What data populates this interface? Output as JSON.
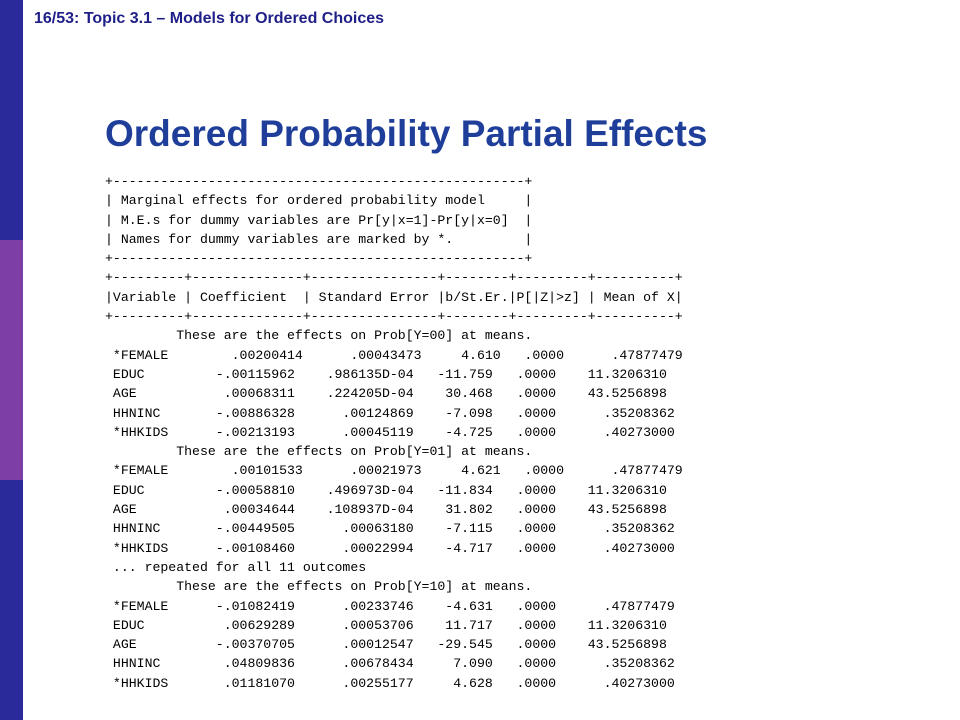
{
  "slide": {
    "header": "16/53: Topic 3.1 – Models for Ordered Choices",
    "title": "Ordered Probability Partial Effects"
  },
  "output": {
    "box_lines": [
      "+----------------------------------------------------+",
      "| Marginal effects for ordered probability model     |",
      "| M.E.s for dummy variables are Pr[y|x=1]-Pr[y|x=0]  |",
      "| Names for dummy variables are marked by *.         |",
      "+----------------------------------------------------+"
    ],
    "table_header_lines": [
      "+---------+--------------+----------------+--------+---------+----------+",
      "|Variable | Coefficient  | Standard Error |b/St.Er.|P[|Z|>z] | Mean of X|",
      "+---------+--------------+----------------+--------+---------+----------+"
    ],
    "block1": {
      "heading": "         These are the effects on Prob[Y=00] at means.",
      "rows": [
        " *FEMALE        .00200414      .00043473     4.610   .0000      .47877479",
        " EDUC         -.00115962    .986135D-04   -11.759   .0000    11.3206310",
        " AGE           .00068311    .224205D-04    30.468   .0000    43.5256898",
        " HHNINC       -.00886328      .00124869    -7.098   .0000      .35208362",
        " *HHKIDS      -.00213193      .00045119    -4.725   .0000      .40273000"
      ]
    },
    "block2": {
      "heading": "         These are the effects on Prob[Y=01] at means.",
      "rows": [
        " *FEMALE        .00101533      .00021973     4.621   .0000      .47877479",
        " EDUC         -.00058810    .496973D-04   -11.834   .0000    11.3206310",
        " AGE           .00034644    .108937D-04    31.802   .0000    43.5256898",
        " HHNINC       -.00449505      .00063180    -7.115   .0000      .35208362",
        " *HHKIDS      -.00108460      .00022994    -4.717   .0000      .40273000"
      ]
    },
    "repeat_note": " ... repeated for all 11 outcomes",
    "block3": {
      "heading": "         These are the effects on Prob[Y=10] at means.",
      "rows": [
        " *FEMALE      -.01082419      .00233746    -4.631   .0000      .47877479",
        " EDUC          .00629289      .00053706    11.717   .0000    11.3206310",
        " AGE          -.00370705      .00012547   -29.545   .0000    43.5256898",
        " HHNINC        .04809836      .00678434     7.090   .0000      .35208362",
        " *HHKIDS       .01181070      .00255177     4.628   .0000      .40273000"
      ]
    }
  },
  "colors": {
    "bar_blue": "#2a2a9a",
    "bar_purple": "#7d3fa6",
    "title_blue": "#1f3e9a",
    "header_blue": "#1f1f88"
  }
}
